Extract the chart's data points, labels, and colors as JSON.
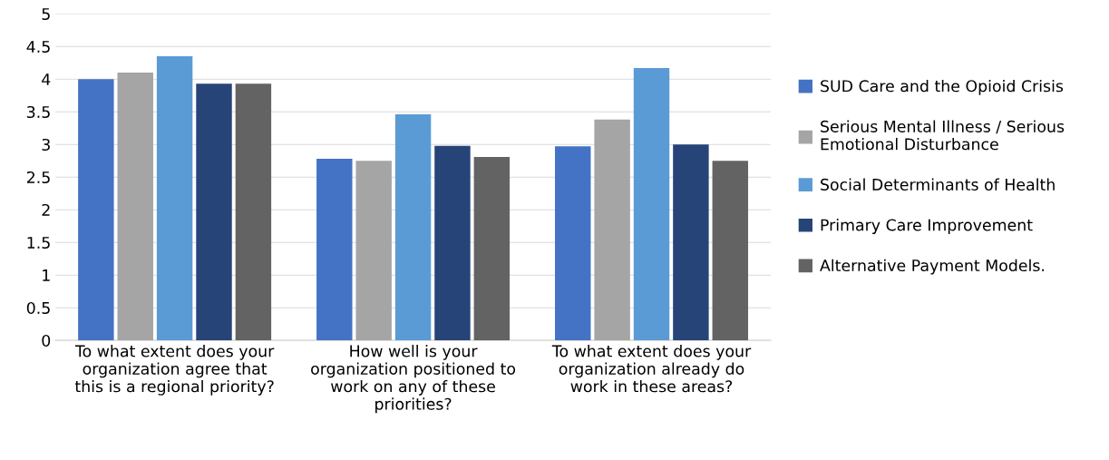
{
  "chart_data": {
    "type": "bar",
    "categories": [
      "To what extent does your\norganization agree that\nthis is a regional priority?",
      "How well is your\norganization positioned to\nwork on any of these\npriorities?",
      "To what extent does your\norganization already do\nwork in these areas?"
    ],
    "series": [
      {
        "name": "SUD Care and the Opioid Crisis",
        "color": "#4472c4",
        "values": [
          4.0,
          2.78,
          2.97
        ]
      },
      {
        "name": "Serious Mental Illness / Serious\nEmotional Disturbance",
        "color": "#a5a5a5",
        "values": [
          4.1,
          2.75,
          3.38
        ]
      },
      {
        "name": "Social Determinants of Health",
        "color": "#5b9bd5",
        "values": [
          4.35,
          3.46,
          4.17
        ]
      },
      {
        "name": "Primary Care Improvement",
        "color": "#264478",
        "values": [
          3.93,
          2.98,
          3.0
        ]
      },
      {
        "name": "Alternative Payment Models.",
        "color": "#636363",
        "values": [
          3.93,
          2.81,
          2.75
        ]
      }
    ],
    "ylim": [
      0,
      5
    ],
    "yticks": [
      0,
      0.5,
      1,
      1.5,
      2,
      2.5,
      3,
      3.5,
      4,
      4.5,
      5
    ],
    "grid": "y",
    "legend": "right"
  }
}
